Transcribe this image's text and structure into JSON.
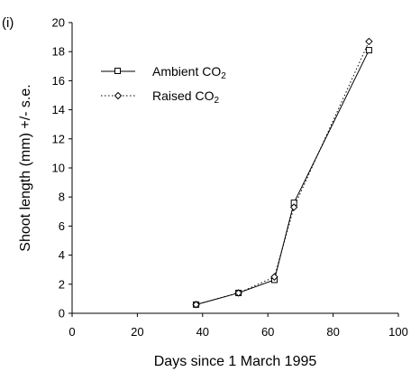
{
  "chart_data": {
    "type": "line",
    "panel_label": "(i)",
    "xlabel": "Days since 1 March 1995",
    "ylabel": "Shoot length (mm) +/- s.e.",
    "xlim": [
      0,
      100
    ],
    "ylim": [
      0,
      20
    ],
    "x_ticks": [
      0,
      20,
      40,
      60,
      80,
      100
    ],
    "y_ticks": [
      0,
      2,
      4,
      6,
      8,
      10,
      12,
      14,
      16,
      18,
      20
    ],
    "grid": false,
    "legend_position": "top-left",
    "series": [
      {
        "name": "Ambient CO",
        "name_sub": "2",
        "marker": "square",
        "line_style": "solid",
        "color": "#000000",
        "x": [
          38,
          51,
          62,
          68,
          91
        ],
        "y": [
          0.6,
          1.4,
          2.3,
          7.6,
          18.1
        ]
      },
      {
        "name": "Raised CO",
        "name_sub": "2",
        "marker": "diamond",
        "line_style": "dotted",
        "color": "#000000",
        "x": [
          38,
          51,
          62,
          68,
          91
        ],
        "y": [
          0.6,
          1.4,
          2.5,
          7.3,
          18.7
        ]
      }
    ]
  }
}
